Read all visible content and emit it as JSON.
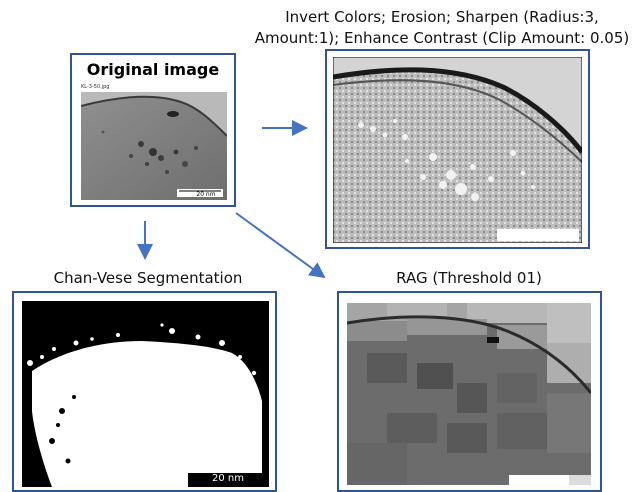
{
  "original": {
    "heading": "Original image",
    "filename": "KL-3-50.jpg",
    "scalebar": "20 nm"
  },
  "enhanced": {
    "title_line1": "Invert Colors; Erosion; Sharpen (Radius:3,",
    "title_line2": "Amount:1); Enhance Contrast (Clip Amount: 0.05)"
  },
  "chanvese": {
    "title": "Chan-Vese Segmentation",
    "scalebar": "20 nm"
  },
  "rag": {
    "title": "RAG (Threshold 01)"
  },
  "colors": {
    "frame": "#2f5597",
    "arrow": "#4472c4"
  }
}
